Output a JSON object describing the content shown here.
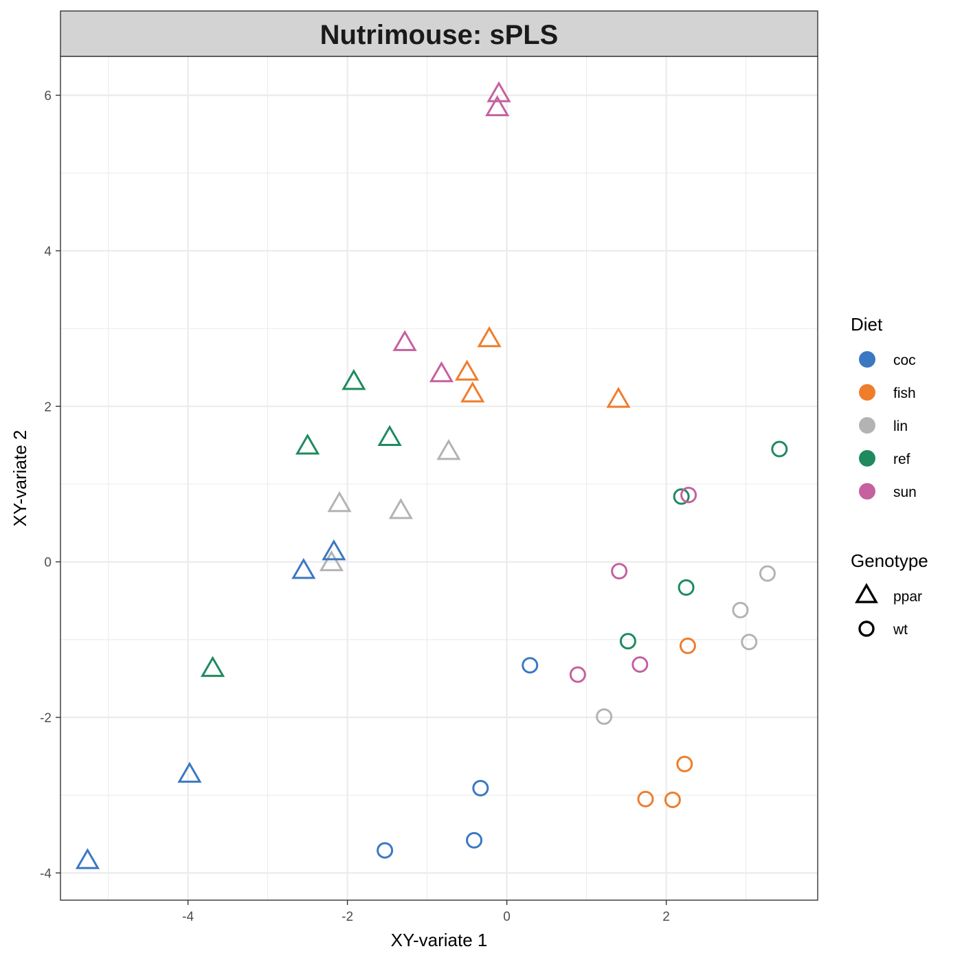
{
  "chart_data": {
    "type": "scatter",
    "title": "Nutrimouse: sPLS",
    "xlabel": "XY-variate 1",
    "ylabel": "XY-variate 2",
    "xlim": [
      -5.6,
      3.9
    ],
    "ylim": [
      -4.35,
      6.5
    ],
    "xticks": [
      -4,
      -2,
      0,
      2
    ],
    "yticks": [
      -4,
      -2,
      0,
      2,
      4,
      6
    ],
    "xtick_labels": [
      "-4",
      "-2",
      "0",
      "2"
    ],
    "ytick_labels": [
      "-4",
      "-2",
      "0",
      "2",
      "4",
      "6"
    ],
    "grid": true,
    "legend_position": "right",
    "color_legend": {
      "title": "Diet",
      "entries": [
        {
          "label": "coc",
          "color": "#3a78c2"
        },
        {
          "label": "fish",
          "color": "#ee7d2c"
        },
        {
          "label": "lin",
          "color": "#b3b3b3"
        },
        {
          "label": "ref",
          "color": "#1e8a5e"
        },
        {
          "label": "sun",
          "color": "#c6609e"
        }
      ]
    },
    "shape_legend": {
      "title": "Genotype",
      "entries": [
        {
          "label": "ppar",
          "shape": "triangle"
        },
        {
          "label": "wt",
          "shape": "circle"
        }
      ]
    },
    "points": [
      {
        "x": -0.1,
        "y": 6.0,
        "diet": "sun",
        "genotype": "ppar"
      },
      {
        "x": -0.12,
        "y": 5.82,
        "diet": "sun",
        "genotype": "ppar"
      },
      {
        "x": -1.28,
        "y": 2.8,
        "diet": "sun",
        "genotype": "ppar"
      },
      {
        "x": -0.82,
        "y": 2.4,
        "diet": "sun",
        "genotype": "ppar"
      },
      {
        "x": -0.22,
        "y": 2.85,
        "diet": "fish",
        "genotype": "ppar"
      },
      {
        "x": -0.5,
        "y": 2.42,
        "diet": "fish",
        "genotype": "ppar"
      },
      {
        "x": -0.43,
        "y": 2.14,
        "diet": "fish",
        "genotype": "ppar"
      },
      {
        "x": 1.4,
        "y": 2.07,
        "diet": "fish",
        "genotype": "ppar"
      },
      {
        "x": -1.92,
        "y": 2.3,
        "diet": "ref",
        "genotype": "ppar"
      },
      {
        "x": -2.5,
        "y": 1.47,
        "diet": "ref",
        "genotype": "ppar"
      },
      {
        "x": -1.47,
        "y": 1.58,
        "diet": "ref",
        "genotype": "ppar"
      },
      {
        "x": -3.69,
        "y": -1.39,
        "diet": "ref",
        "genotype": "ppar"
      },
      {
        "x": -0.73,
        "y": 1.4,
        "diet": "lin",
        "genotype": "ppar"
      },
      {
        "x": -2.1,
        "y": 0.73,
        "diet": "lin",
        "genotype": "ppar"
      },
      {
        "x": -1.33,
        "y": 0.64,
        "diet": "lin",
        "genotype": "ppar"
      },
      {
        "x": -2.2,
        "y": -0.03,
        "diet": "lin",
        "genotype": "ppar"
      },
      {
        "x": -2.17,
        "y": 0.11,
        "diet": "coc",
        "genotype": "ppar"
      },
      {
        "x": -2.55,
        "y": -0.13,
        "diet": "coc",
        "genotype": "ppar"
      },
      {
        "x": -3.98,
        "y": -2.75,
        "diet": "coc",
        "genotype": "ppar"
      },
      {
        "x": -5.26,
        "y": -3.86,
        "diet": "coc",
        "genotype": "ppar"
      },
      {
        "x": 3.42,
        "y": 1.45,
        "diet": "ref",
        "genotype": "wt"
      },
      {
        "x": 2.19,
        "y": 0.84,
        "diet": "ref",
        "genotype": "wt"
      },
      {
        "x": 2.25,
        "y": -0.33,
        "diet": "ref",
        "genotype": "wt"
      },
      {
        "x": 1.52,
        "y": -1.02,
        "diet": "ref",
        "genotype": "wt"
      },
      {
        "x": 2.28,
        "y": 0.86,
        "diet": "sun",
        "genotype": "wt"
      },
      {
        "x": 1.41,
        "y": -0.12,
        "diet": "sun",
        "genotype": "wt"
      },
      {
        "x": 1.67,
        "y": -1.32,
        "diet": "sun",
        "genotype": "wt"
      },
      {
        "x": 0.89,
        "y": -1.45,
        "diet": "sun",
        "genotype": "wt"
      },
      {
        "x": 3.27,
        "y": -0.15,
        "diet": "lin",
        "genotype": "wt"
      },
      {
        "x": 2.93,
        "y": -0.62,
        "diet": "lin",
        "genotype": "wt"
      },
      {
        "x": 3.04,
        "y": -1.03,
        "diet": "lin",
        "genotype": "wt"
      },
      {
        "x": 1.22,
        "y": -1.99,
        "diet": "lin",
        "genotype": "wt"
      },
      {
        "x": 2.27,
        "y": -1.08,
        "diet": "fish",
        "genotype": "wt"
      },
      {
        "x": 2.23,
        "y": -2.6,
        "diet": "fish",
        "genotype": "wt"
      },
      {
        "x": 1.74,
        "y": -3.05,
        "diet": "fish",
        "genotype": "wt"
      },
      {
        "x": 2.08,
        "y": -3.06,
        "diet": "fish",
        "genotype": "wt"
      },
      {
        "x": 0.29,
        "y": -1.33,
        "diet": "coc",
        "genotype": "wt"
      },
      {
        "x": -0.33,
        "y": -2.91,
        "diet": "coc",
        "genotype": "wt"
      },
      {
        "x": -0.41,
        "y": -3.58,
        "diet": "coc",
        "genotype": "wt"
      },
      {
        "x": -1.53,
        "y": -3.71,
        "diet": "coc",
        "genotype": "wt"
      }
    ]
  }
}
